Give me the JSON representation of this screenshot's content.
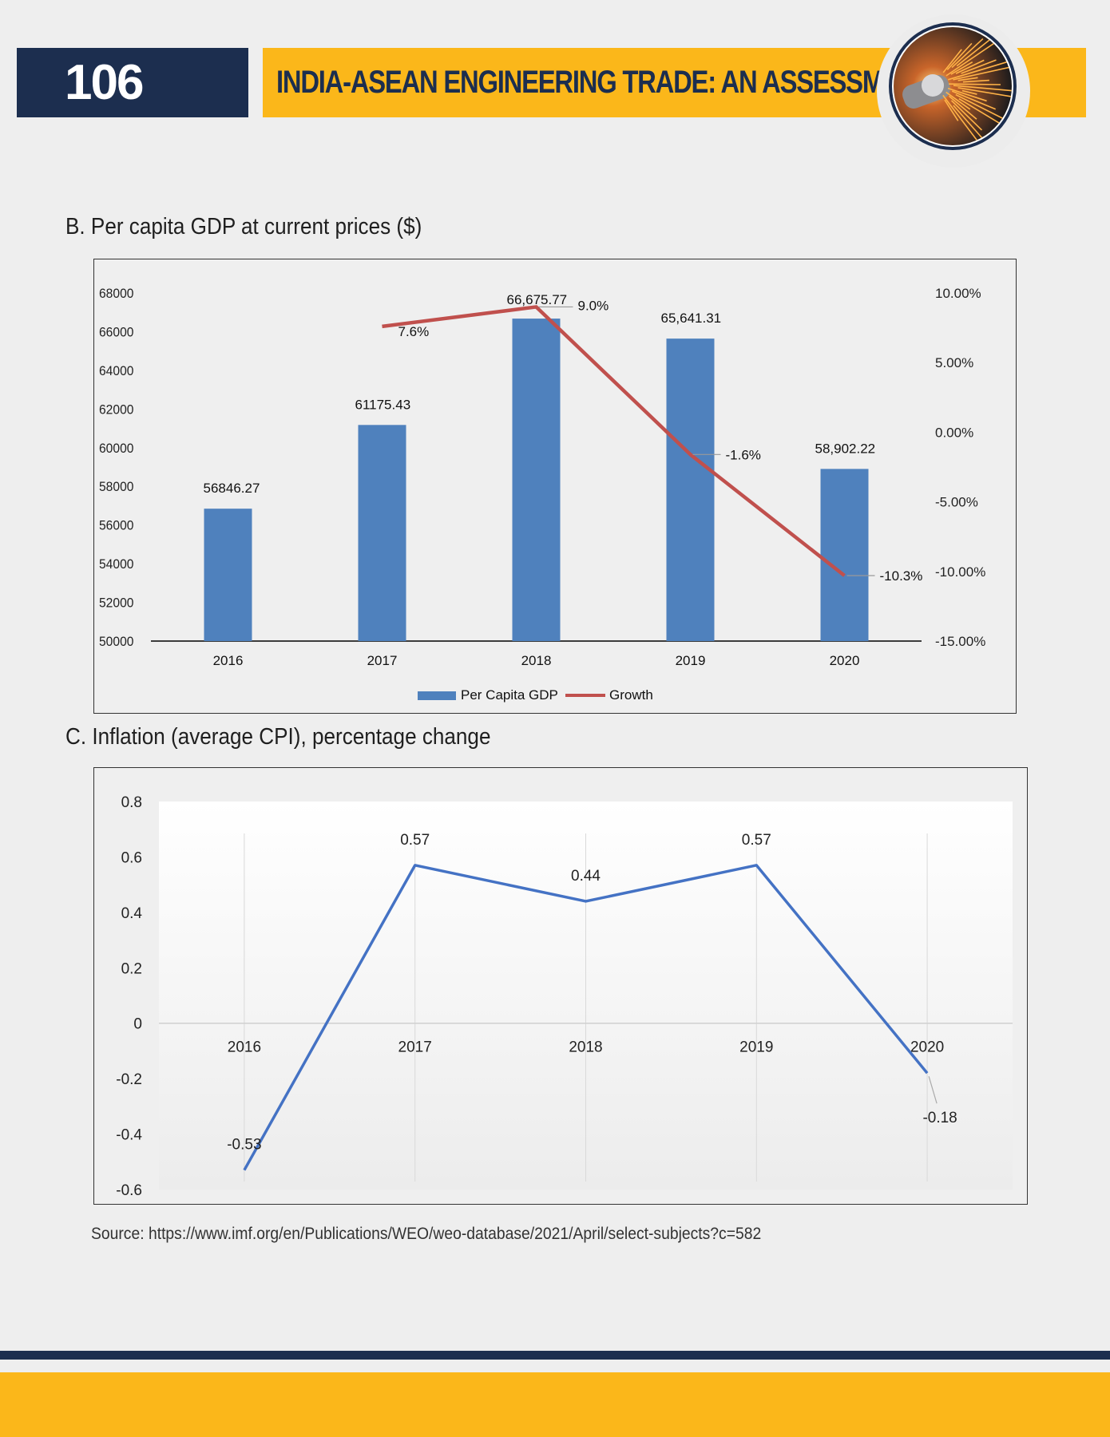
{
  "header": {
    "page_number": "106",
    "title": "INDIA-ASEAN ENGINEERING TRADE: AN ASSESSMENT",
    "badge_icon": "grinding-sparks-icon"
  },
  "colors": {
    "navy": "#1c2e4f",
    "gold": "#fbb71a",
    "bar_blue": "#4f81bd",
    "growth_red": "#c0504d",
    "inflation_blue": "#4472c4"
  },
  "sections": {
    "gdp_title": "B. Per capita GDP at current prices ($)",
    "inflation_title": "C. Inflation (average CPI), percentage change"
  },
  "chart_data": [
    {
      "type": "bar",
      "title": "B. Per capita GDP at current prices ($)",
      "categories": [
        "2016",
        "2017",
        "2018",
        "2019",
        "2020"
      ],
      "series": [
        {
          "name": "Per Capita GDP",
          "type": "bar",
          "axis": "left",
          "values": [
            56846.27,
            61175.43,
            66675.77,
            65641.31,
            58902.22
          ],
          "labels": [
            "56846.27",
            "61175.43",
            "66,675.77",
            "65,641.31",
            "58,902.22"
          ]
        },
        {
          "name": "Growth",
          "type": "line",
          "axis": "right",
          "values": [
            null,
            7.6,
            9.0,
            -1.6,
            -10.3
          ],
          "labels": [
            "",
            "7.6%",
            "9.0%",
            "-1.6%",
            "-10.3%"
          ]
        }
      ],
      "y_left": {
        "range": [
          50000,
          68000
        ],
        "ticks": [
          "50000",
          "52000",
          "54000",
          "56000",
          "58000",
          "60000",
          "62000",
          "64000",
          "66000",
          "68000"
        ]
      },
      "y_right": {
        "range": [
          -15,
          10
        ],
        "ticks": [
          "-15.00%",
          "-10.00%",
          "-5.00%",
          "0.00%",
          "5.00%",
          "10.00%"
        ]
      },
      "legend": {
        "placement": "bottom",
        "items": [
          "Per Capita GDP",
          "Growth"
        ]
      },
      "grid": false
    },
    {
      "type": "line",
      "title": "C. Inflation (average CPI), percentage change",
      "categories": [
        "2016",
        "2017",
        "2018",
        "2019",
        "2020"
      ],
      "values": [
        -0.53,
        0.57,
        0.44,
        0.57,
        -0.18
      ],
      "labels": [
        "-0.53",
        "0.57",
        "0.44",
        "0.57",
        "-0.18"
      ],
      "y": {
        "range": [
          -0.6,
          0.8
        ],
        "ticks": [
          "-0.6",
          "-0.4",
          "-0.2",
          "0",
          "0.2",
          "0.4",
          "0.6",
          "0.8"
        ]
      },
      "grid": "vertical",
      "legend": "none"
    }
  ],
  "source": "Source: https://www.imf.org/en/Publications/WEO/weo-database/2021/April/select-subjects?c=582"
}
